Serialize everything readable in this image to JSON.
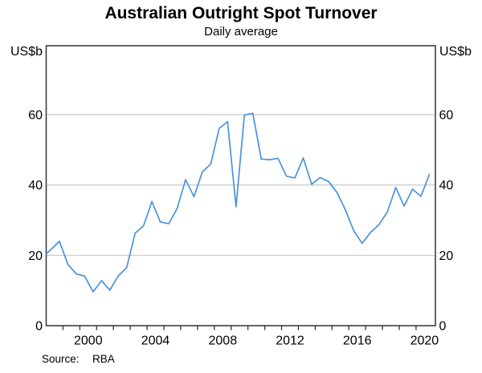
{
  "title": "Australian Outright Spot Turnover",
  "subtitle": "Daily average",
  "source_label": "Source:",
  "source_value": "RBA",
  "axes": {
    "unit_left": "US$b",
    "unit_right": "US$b",
    "y_ticks": [
      0,
      20,
      40,
      60
    ],
    "x_label_years": [
      2000,
      2004,
      2008,
      2012,
      2016,
      2020
    ],
    "x_minor_tick_first": 1999,
    "x_minor_tick_last": 2020
  },
  "colors": {
    "line": "#4a92dd",
    "grid": "#c9c9c9",
    "axis": "#333333",
    "text": "#000000"
  },
  "chart_data": {
    "type": "line",
    "title": "Australian Outright Spot Turnover",
    "subtitle": "Daily average",
    "ylabel": "US$b",
    "source": "RBA",
    "frequency": "semiannual (Apr / Oct survey points, decimal years)",
    "grid": "horizontal",
    "legend": "none",
    "xlim": [
      1998.0,
      2021.15
    ],
    "ylim": [
      0,
      79.6
    ],
    "x": [
      1998.0,
      1998.79,
      1999.29,
      1999.79,
      2000.29,
      2000.79,
      2001.29,
      2001.79,
      2002.29,
      2002.79,
      2003.29,
      2003.79,
      2004.29,
      2004.79,
      2005.29,
      2005.79,
      2006.29,
      2006.79,
      2007.29,
      2007.79,
      2008.29,
      2008.79,
      2009.29,
      2009.79,
      2010.29,
      2010.79,
      2011.29,
      2011.79,
      2012.29,
      2012.79,
      2013.29,
      2013.79,
      2014.29,
      2014.79,
      2015.29,
      2015.79,
      2016.29,
      2016.79,
      2017.29,
      2017.79,
      2018.29,
      2018.79,
      2019.29,
      2019.79,
      2020.29,
      2020.79
    ],
    "values": [
      20.4,
      24.0,
      17.4,
      14.7,
      14.1,
      9.6,
      12.8,
      10.1,
      14.2,
      16.5,
      26.3,
      28.4,
      35.3,
      29.5,
      29.0,
      33.3,
      41.5,
      36.7,
      43.7,
      46.0,
      56.1,
      58.0,
      33.8,
      59.9,
      60.4,
      47.4,
      47.2,
      47.6,
      42.5,
      42.0,
      47.7,
      40.2,
      42.1,
      41.0,
      37.9,
      33.0,
      27.0,
      23.4,
      26.5,
      28.7,
      32.3,
      39.3,
      34.0,
      38.8,
      36.8,
      43.0
    ]
  }
}
